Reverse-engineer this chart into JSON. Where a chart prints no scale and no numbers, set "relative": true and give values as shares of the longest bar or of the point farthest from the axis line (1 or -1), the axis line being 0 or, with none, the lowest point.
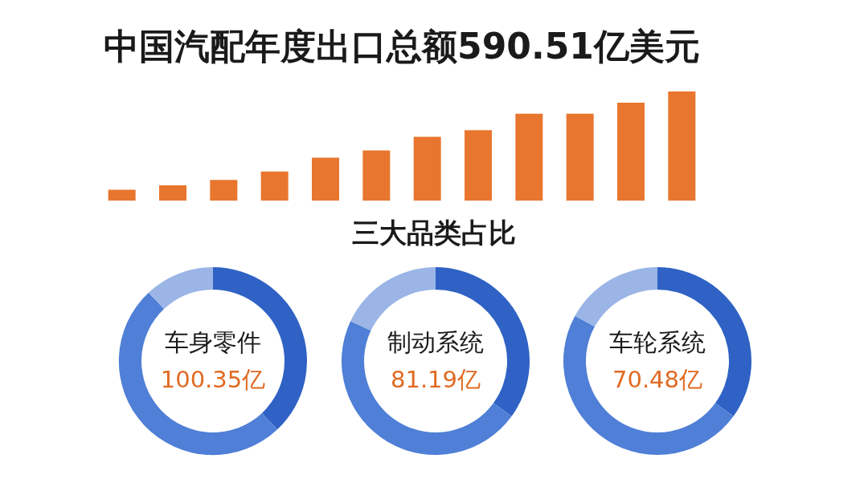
{
  "chart_data": [
    {
      "type": "bar",
      "title": "中国汽配年度出口总额590.51亿美元",
      "categories": [
        null,
        null,
        null,
        null,
        null,
        null,
        null,
        null,
        null,
        null,
        null,
        null
      ],
      "values": [
        0.099,
        0.139,
        0.19,
        0.266,
        0.394,
        0.46,
        0.584,
        0.646,
        0.796,
        0.796,
        0.898,
        1
      ],
      "color": "#e8762f",
      "relative": true,
      "annotations": [
        "三大品类占比"
      ]
    },
    {
      "type": "donut",
      "categories": [
        null,
        null,
        null
      ],
      "values": [
        38,
        50,
        12
      ],
      "colors": [
        "#2f62c4",
        "#4f7fd6",
        "#9ab5e6"
      ],
      "annotations": [
        "车身零件",
        "100.35亿"
      ]
    },
    {
      "type": "donut",
      "categories": [
        null,
        null,
        null
      ],
      "values": [
        35,
        47,
        18
      ],
      "colors": [
        "#2f62c4",
        "#4f7fd6",
        "#9ab5e6"
      ],
      "annotations": [
        "制动系统",
        "81.19亿"
      ]
    },
    {
      "type": "donut",
      "categories": [
        null,
        null,
        null
      ],
      "values": [
        35,
        48,
        17
      ],
      "colors": [
        "#2f62c4",
        "#4f7fd6",
        "#9ab5e6"
      ],
      "annotations": [
        "车轮系统",
        "70.48亿"
      ]
    }
  ]
}
